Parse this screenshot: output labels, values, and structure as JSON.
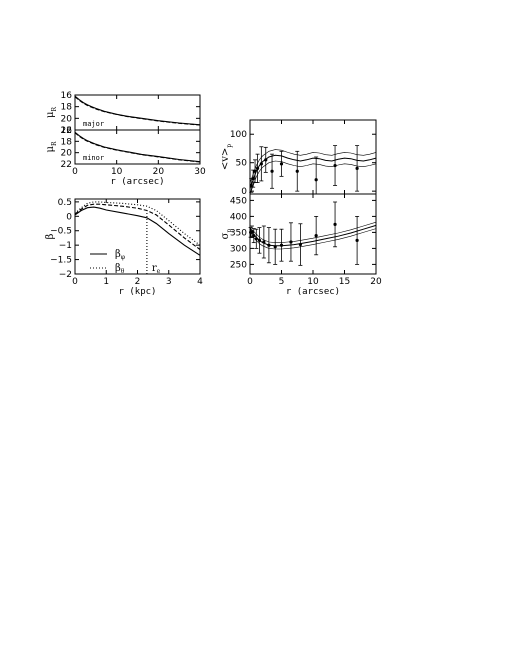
{
  "chart_data": [
    {
      "id": "mu_major",
      "type": "line",
      "panel_label": "major",
      "ylabel": "μ",
      "ylabel_sub": "R",
      "xlim": [
        0,
        30
      ],
      "ylim": [
        16,
        22
      ],
      "y_inverted": true,
      "xticks": [
        0,
        10,
        20,
        30
      ],
      "yticks": [
        16,
        18,
        20,
        22
      ],
      "x_ticklabels_shown": false,
      "series": [
        {
          "style": "solid",
          "x": [
            0,
            1,
            2,
            3,
            4,
            5,
            7,
            10,
            13,
            16,
            20,
            25,
            30
          ],
          "y": [
            16.2,
            16.8,
            17.3,
            17.7,
            18.0,
            18.3,
            18.8,
            19.3,
            19.7,
            20.0,
            20.4,
            20.8,
            21.1
          ]
        },
        {
          "style": "dashed",
          "x": [
            0,
            1,
            2,
            3,
            4,
            5,
            7,
            10,
            13,
            16,
            20,
            25,
            30
          ],
          "y": [
            16.3,
            16.9,
            17.4,
            17.8,
            18.1,
            18.4,
            18.85,
            19.35,
            19.75,
            20.05,
            20.45,
            20.85,
            21.15
          ]
        }
      ]
    },
    {
      "id": "mu_minor",
      "type": "line",
      "panel_label": "minor",
      "ylabel": "μ",
      "ylabel_sub": "R",
      "xlabel": "r (arcsec)",
      "xlim": [
        0,
        30
      ],
      "ylim": [
        16,
        22
      ],
      "y_inverted": true,
      "xticks": [
        0,
        10,
        20,
        30
      ],
      "yticks": [
        16,
        18,
        20,
        22
      ],
      "series": [
        {
          "style": "solid",
          "x": [
            0,
            1,
            2,
            3,
            5,
            7,
            10,
            13,
            16,
            20,
            25,
            30
          ],
          "y": [
            16.4,
            17.0,
            17.5,
            17.9,
            18.5,
            19.0,
            19.5,
            19.9,
            20.3,
            20.7,
            21.2,
            21.6
          ]
        },
        {
          "style": "dashed",
          "x": [
            0,
            1,
            2,
            3,
            5,
            7,
            10,
            13,
            16,
            20,
            25,
            30
          ],
          "y": [
            16.5,
            17.1,
            17.6,
            18.0,
            18.6,
            19.05,
            19.55,
            19.95,
            20.35,
            20.75,
            21.25,
            21.65
          ]
        }
      ]
    },
    {
      "id": "beta",
      "type": "line",
      "ylabel": "β",
      "xlabel": "r (kpc)",
      "xlim": [
        0,
        4
      ],
      "ylim": [
        -2,
        0.6
      ],
      "xticks": [
        0,
        1,
        2,
        3,
        4
      ],
      "yticks": [
        0.5,
        0,
        -0.5,
        -1,
        -1.5,
        -2
      ],
      "ytick_labels": [
        "0.5",
        "0",
        "−0.5",
        "−1",
        "−1.5",
        "−2"
      ],
      "legend": [
        {
          "symbol": "β",
          "sub": "φ",
          "style": "solid"
        },
        {
          "symbol": "β",
          "sub": "θ",
          "style": "dotted"
        }
      ],
      "annotation": {
        "text": "r",
        "sub": "e",
        "x": 2.3
      },
      "series": [
        {
          "style": "solid",
          "x": [
            0,
            0.2,
            0.4,
            0.6,
            0.8,
            1.0,
            1.5,
            2.0,
            2.3,
            2.6,
            3.0,
            3.5,
            4.0
          ],
          "y": [
            0.05,
            0.2,
            0.3,
            0.32,
            0.28,
            0.22,
            0.12,
            0.02,
            -0.05,
            -0.25,
            -0.6,
            -1.0,
            -1.35
          ]
        },
        {
          "style": "dashed",
          "x": [
            0,
            0.2,
            0.4,
            0.6,
            0.8,
            1.0,
            1.5,
            2.0,
            2.3,
            2.6,
            3.0,
            3.5,
            4.0
          ],
          "y": [
            0.08,
            0.25,
            0.38,
            0.42,
            0.42,
            0.4,
            0.35,
            0.28,
            0.2,
            0.05,
            -0.3,
            -0.75,
            -1.15
          ]
        },
        {
          "style": "dotted",
          "x": [
            0,
            0.2,
            0.4,
            0.6,
            0.8,
            1.0,
            1.5,
            2.0,
            2.3,
            2.6,
            3.0,
            3.5,
            4.0
          ],
          "y": [
            0.1,
            0.3,
            0.45,
            0.5,
            0.5,
            0.48,
            0.45,
            0.4,
            0.35,
            0.2,
            -0.15,
            -0.6,
            -1.0
          ]
        },
        {
          "style": "dotted-vertical",
          "x": [
            2.3,
            2.3
          ],
          "y": [
            -2,
            0.25
          ]
        }
      ]
    },
    {
      "id": "vp",
      "type": "line",
      "ylabel": "<v>",
      "ylabel_sub": "p",
      "xlim": [
        0,
        20
      ],
      "ylim": [
        -5,
        125
      ],
      "xticks": [
        0,
        5,
        10,
        15,
        20
      ],
      "yticks": [
        0,
        50,
        100
      ],
      "x_ticklabels_shown": false,
      "model": {
        "x": [
          0,
          0.5,
          1,
          1.5,
          2,
          3,
          4,
          5,
          6,
          7,
          8,
          9,
          10,
          11,
          12,
          13,
          14,
          15,
          16,
          17,
          18,
          19,
          20
        ],
        "y": [
          5,
          20,
          35,
          45,
          52,
          60,
          63,
          62,
          58,
          55,
          53,
          55,
          58,
          57,
          54,
          53,
          56,
          58,
          57,
          54,
          53,
          55,
          58
        ],
        "band": 10
      },
      "points": [
        {
          "x": 0.2,
          "y": 10,
          "err": 12
        },
        {
          "x": 0.5,
          "y": 22,
          "err": 15
        },
        {
          "x": 0.8,
          "y": 35,
          "err": 20
        },
        {
          "x": 1.2,
          "y": 40,
          "err": 25
        },
        {
          "x": 1.8,
          "y": 48,
          "err": 30
        },
        {
          "x": 2.5,
          "y": 55,
          "err": 22
        },
        {
          "x": 3.5,
          "y": 35,
          "err": 30
        },
        {
          "x": 5,
          "y": 48,
          "err": 22
        },
        {
          "x": 7.5,
          "y": 35,
          "err": 35
        },
        {
          "x": 10.5,
          "y": 20,
          "err": 40
        },
        {
          "x": 13.5,
          "y": 45,
          "err": 35
        },
        {
          "x": 17,
          "y": 40,
          "err": 40
        }
      ]
    },
    {
      "id": "sigma_p",
      "type": "line",
      "ylabel": "σ",
      "ylabel_sub": "p",
      "xlabel": "r (arcsec)",
      "xlim": [
        0,
        20
      ],
      "ylim": [
        220,
        470
      ],
      "xticks": [
        0,
        5,
        10,
        15,
        20
      ],
      "yticks": [
        250,
        300,
        350,
        400,
        450
      ],
      "model": {
        "x": [
          0,
          0.5,
          1,
          1.5,
          2,
          3,
          4,
          5,
          6,
          7,
          8,
          10,
          12,
          14,
          16,
          18,
          20
        ],
        "y": [
          350,
          345,
          335,
          325,
          318,
          310,
          308,
          308,
          310,
          312,
          315,
          322,
          330,
          338,
          348,
          360,
          372
        ],
        "band": 10
      },
      "points": [
        {
          "x": 0.1,
          "y": 350,
          "err": 15
        },
        {
          "x": 0.3,
          "y": 352,
          "err": 18
        },
        {
          "x": 0.6,
          "y": 340,
          "err": 22
        },
        {
          "x": 1.0,
          "y": 330,
          "err": 30
        },
        {
          "x": 1.5,
          "y": 325,
          "err": 40
        },
        {
          "x": 2.2,
          "y": 320,
          "err": 50
        },
        {
          "x": 3.0,
          "y": 310,
          "err": 55
        },
        {
          "x": 4.0,
          "y": 305,
          "err": 55
        },
        {
          "x": 5.0,
          "y": 310,
          "err": 50
        },
        {
          "x": 6.5,
          "y": 320,
          "err": 60
        },
        {
          "x": 8.0,
          "y": 312,
          "err": 65
        },
        {
          "x": 10.5,
          "y": 340,
          "err": 60
        },
        {
          "x": 13.5,
          "y": 375,
          "err": 70
        },
        {
          "x": 17.0,
          "y": 325,
          "err": 75
        }
      ]
    }
  ]
}
